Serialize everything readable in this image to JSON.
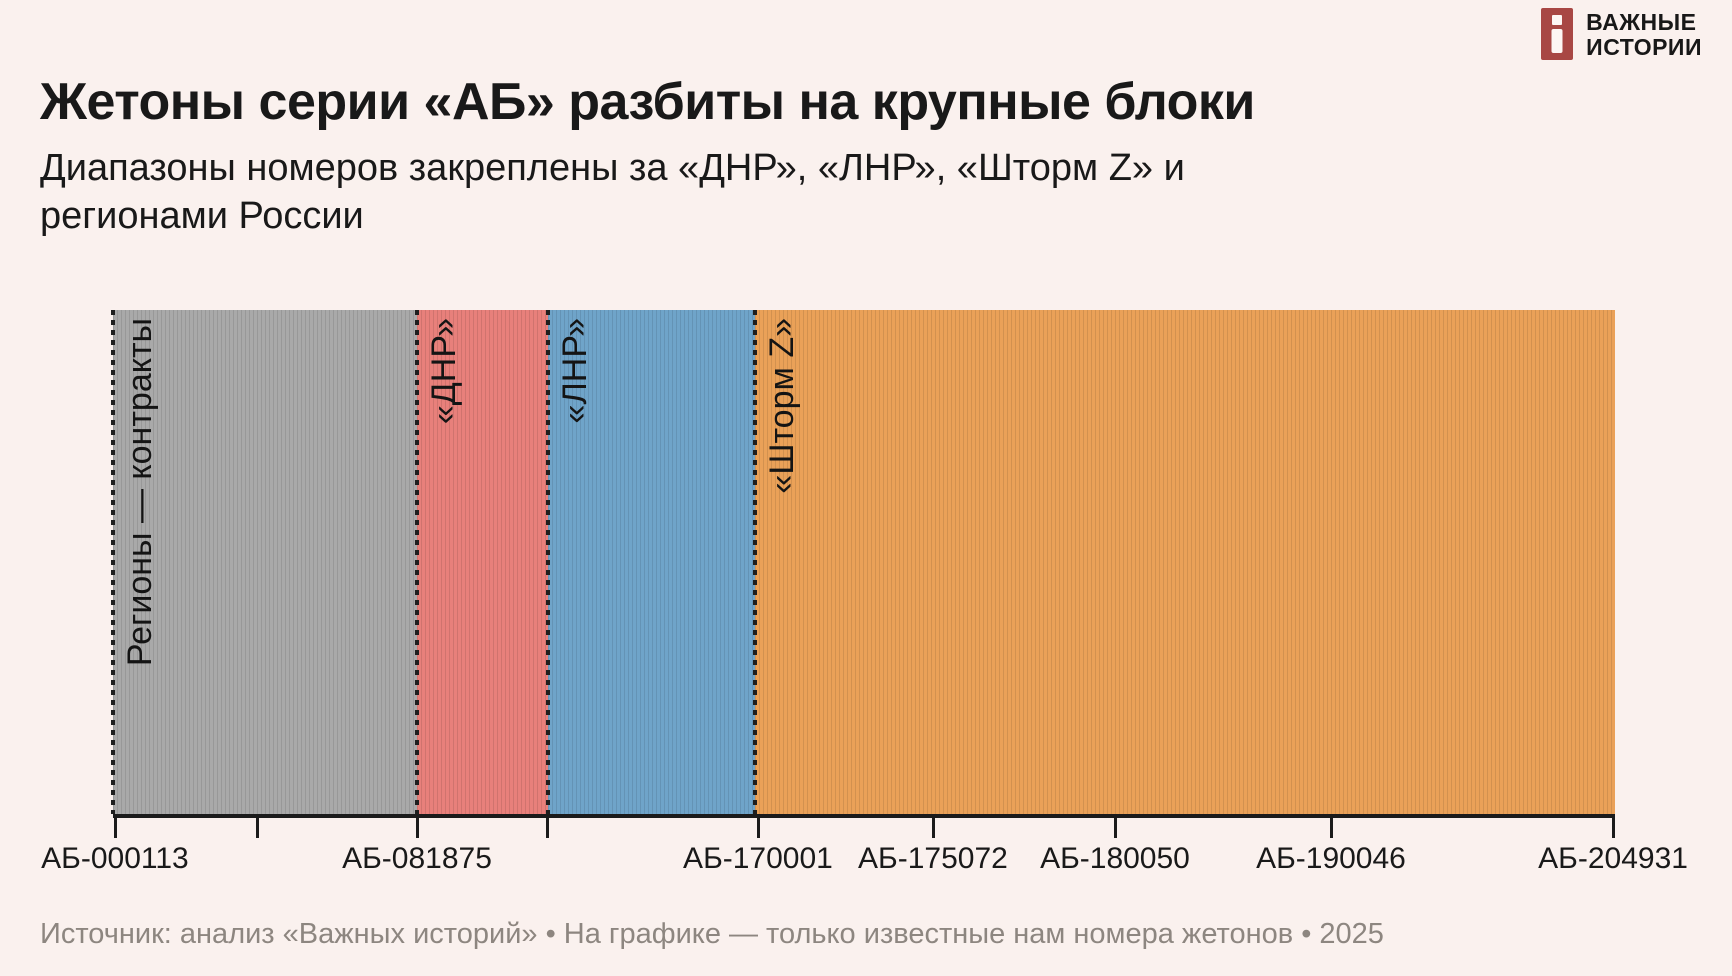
{
  "page": {
    "background_color": "#FAF1EE"
  },
  "logo": {
    "brand_line1": "ВАЖНЫЕ",
    "brand_line2": "ИСТОРИИ",
    "icon_color": "#A84744"
  },
  "header": {
    "title": "Жетоны серии «АБ» разбиты на крупные блоки",
    "subtitle_lines": [
      "Диапазоны номеров закреплены за «ДНР», «ЛНР», «Шторм Z» и",
      "регионами России"
    ]
  },
  "footer": {
    "source": "Источник: анализ «Важных историй» • На графике — только известные нам номера жетонов • 2025"
  },
  "chart_data": {
    "type": "bar",
    "variant": "horizontal-range-strip",
    "title": "Жетоны серии «АБ» разбиты на крупные блоки",
    "subtitle": "Диапазоны номеров закреплены за «ДНР», «ЛНР», «Шторм Z» и регионами России",
    "axis_range": [
      "АБ-000113",
      "АБ-204931"
    ],
    "grid": false,
    "legend": "none",
    "boundary_line_color": "#1E1E1E",
    "axis_line_color": "#1B1B1B",
    "segments": [
      {
        "name": "regions-contracts",
        "label": "Регионы — контракты",
        "from": "АБ-000113",
        "to": "АБ-081875",
        "color": "#A9A9A9",
        "start_pct": 0,
        "end_pct": 20.24
      },
      {
        "name": "dnr",
        "label": "«ДНР»",
        "from": "АБ-081875",
        "to": "",
        "color": "#E8807B",
        "start_pct": 20.24,
        "end_pct": 28.96
      },
      {
        "name": "lnr",
        "label": "«ЛНР»",
        "from": "",
        "to": "АБ-170001",
        "color": "#6FA4C9",
        "start_pct": 28.96,
        "end_pct": 42.74
      },
      {
        "name": "storm-z",
        "label": "«Шторм Z»",
        "from": "АБ-170001",
        "to": "АБ-204931",
        "color": "#EAA158",
        "start_pct": 42.74,
        "end_pct": 100
      }
    ],
    "ticks": [
      {
        "label": "АБ-000113",
        "pct": 0.13
      },
      {
        "label": "",
        "pct": 9.59
      },
      {
        "label": "АБ-081875",
        "pct": 20.24
      },
      {
        "label": "",
        "pct": 28.89
      },
      {
        "label": "АБ-170001",
        "pct": 42.94
      },
      {
        "label": "АБ-175072",
        "pct": 54.59
      },
      {
        "label": "АБ-180050",
        "pct": 66.71
      },
      {
        "label": "АБ-190046",
        "pct": 81.09
      },
      {
        "label": "АБ-204931",
        "pct": 99.87
      }
    ]
  }
}
